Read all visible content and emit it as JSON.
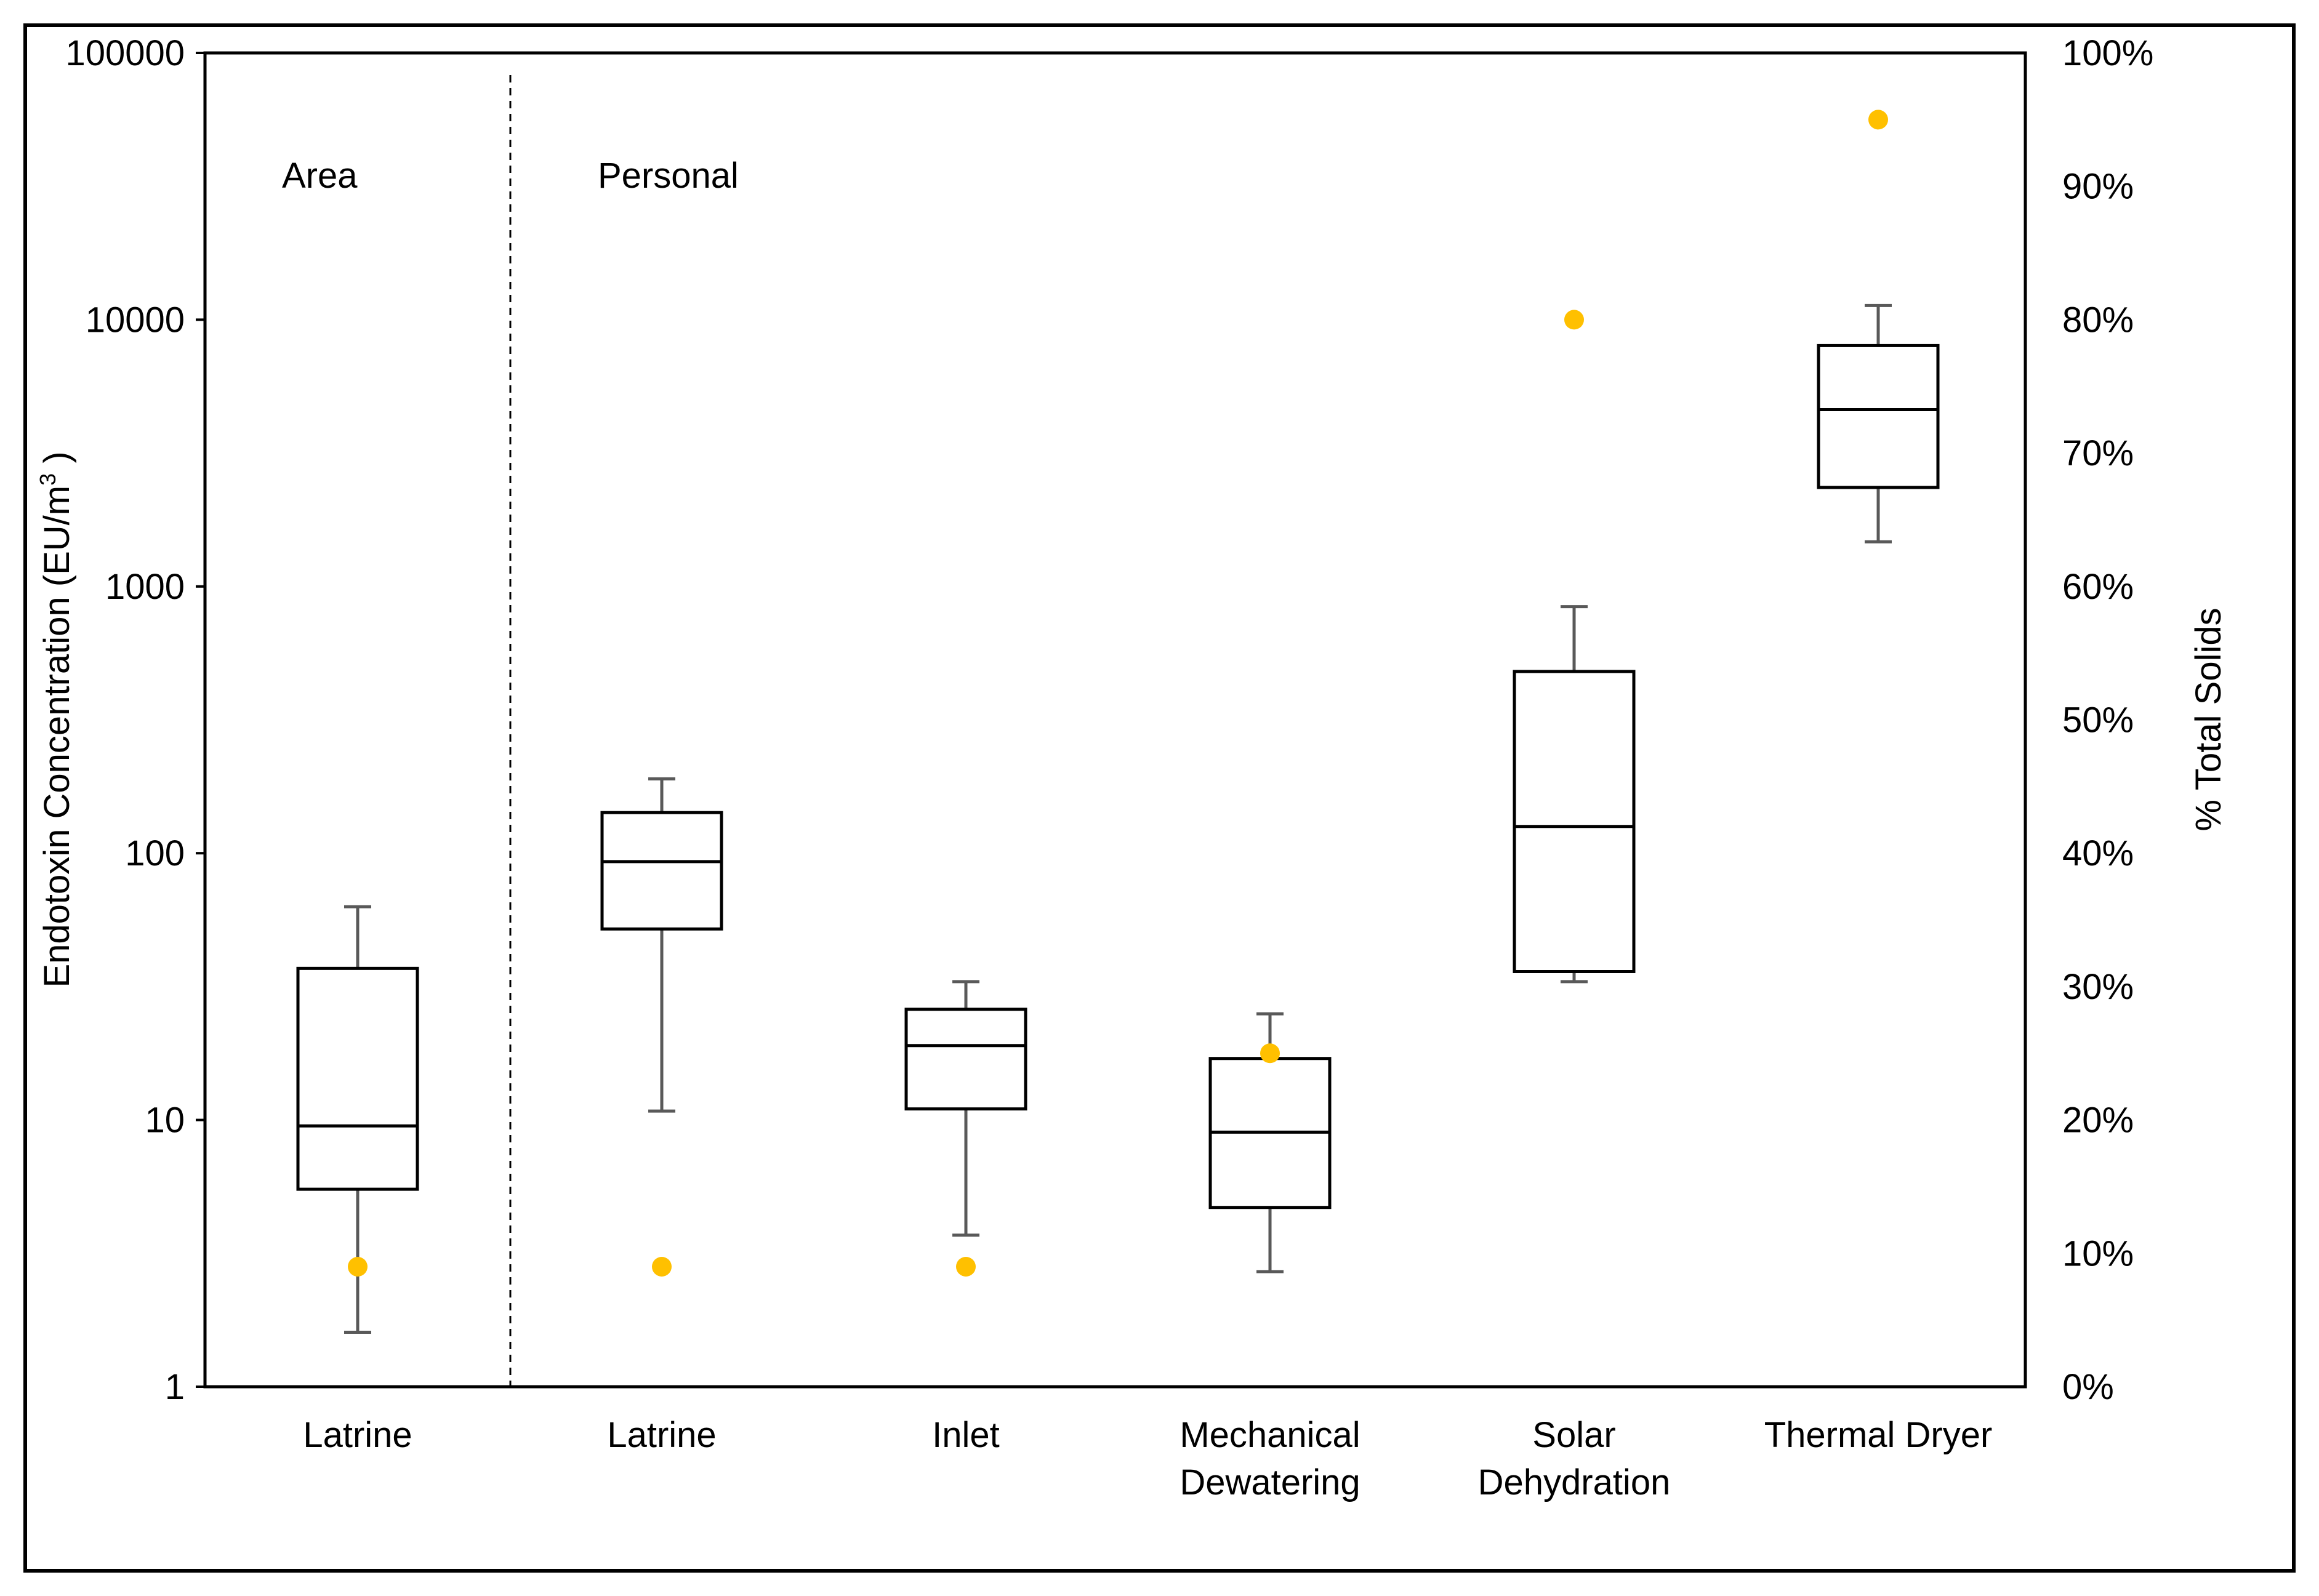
{
  "chart_data": {
    "type": "boxplot",
    "title": "",
    "ylabel_left": {
      "prefix": "Endotoxin Concentration (EU/m",
      "superscript": "3",
      "suffix": " )"
    },
    "ylabel_right": "% Total Solids",
    "y_left_scale": "log",
    "y_left_range": [
      1,
      100000
    ],
    "y_left_ticks": [
      "1",
      "10",
      "100",
      "1000",
      "10000",
      "100000"
    ],
    "y_right_range": [
      0,
      100
    ],
    "y_right_ticks": [
      "0%",
      "10%",
      "20%",
      "30%",
      "40%",
      "50%",
      "60%",
      "70%",
      "80%",
      "90%",
      "100%"
    ],
    "regions": [
      "Area",
      "Personal"
    ],
    "categories": [
      {
        "label_lines": [
          "Latrine"
        ],
        "region": "Area",
        "whisker_low": 1.6,
        "q1": 5.5,
        "median": 9.5,
        "q3": 37,
        "whisker_high": 63,
        "total_solids_pct": 9
      },
      {
        "label_lines": [
          "Latrine"
        ],
        "region": "Personal",
        "whisker_low": 10.8,
        "q1": 52,
        "median": 93,
        "q3": 142,
        "whisker_high": 190,
        "total_solids_pct": 9
      },
      {
        "label_lines": [
          "Inlet"
        ],
        "region": "Personal",
        "whisker_low": 3.7,
        "q1": 11,
        "median": 19,
        "q3": 26,
        "whisker_high": 33,
        "total_solids_pct": 9
      },
      {
        "label_lines": [
          "Mechanical",
          "Dewatering"
        ],
        "region": "Personal",
        "whisker_low": 2.7,
        "q1": 4.7,
        "median": 9,
        "q3": 17,
        "whisker_high": 25,
        "total_solids_pct": 25
      },
      {
        "label_lines": [
          "Solar",
          "Dehydration"
        ],
        "region": "Personal",
        "whisker_low": 33,
        "q1": 36,
        "median": 126,
        "q3": 480,
        "whisker_high": 840,
        "total_solids_pct": 80
      },
      {
        "label_lines": [
          "Thermal Dryer"
        ],
        "region": "Personal",
        "whisker_low": 1470,
        "q1": 2350,
        "median": 4600,
        "q3": 8000,
        "whisker_high": 11300,
        "total_solids_pct": 95
      }
    ],
    "colors": {
      "box": "#000000",
      "whisker": "#595959",
      "point": "#FFC000"
    }
  }
}
